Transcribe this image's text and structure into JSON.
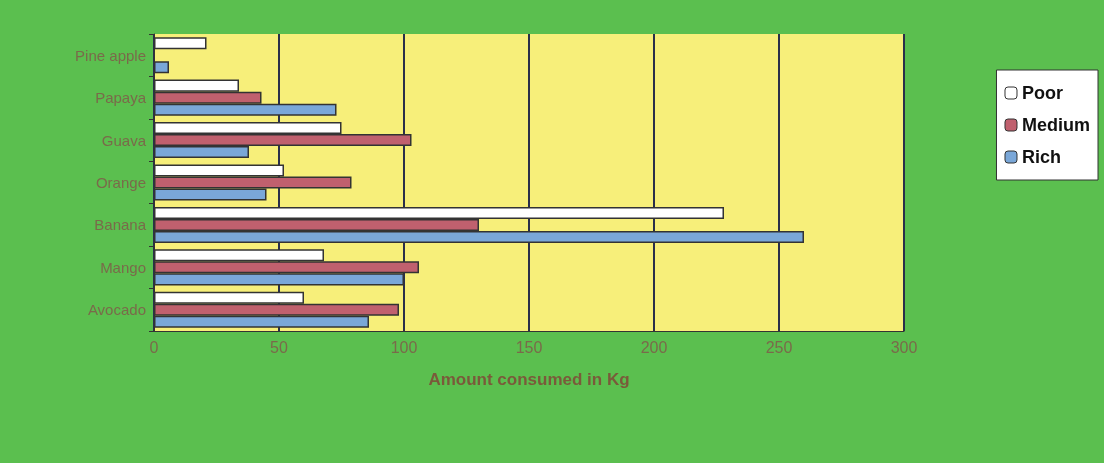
{
  "chart_data": {
    "type": "bar",
    "orientation": "horizontal",
    "xlabel": "Amount consumed in Kg",
    "categories": [
      "Pine apple",
      "Papaya",
      "Guava",
      "Orange",
      "Banana",
      "Mango",
      "Avocado"
    ],
    "series": [
      {
        "name": "Poor",
        "color": "#ffffff",
        "values": [
          21,
          34,
          75,
          52,
          228,
          68,
          60
        ]
      },
      {
        "name": "Medium",
        "color": "#c0606e",
        "values": [
          null,
          43,
          103,
          79,
          130,
          106,
          98
        ]
      },
      {
        "name": "Rich",
        "color": "#7aa7d8",
        "values": [
          6,
          73,
          38,
          45,
          260,
          100,
          86
        ]
      }
    ],
    "xlim": [
      0,
      300
    ],
    "xticks": [
      0,
      50,
      100,
      150,
      200,
      250,
      300
    ],
    "grid": "x",
    "legend": "right"
  }
}
